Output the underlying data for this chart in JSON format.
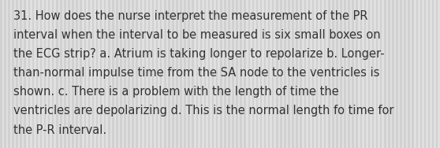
{
  "text_lines": [
    "31. How does the nurse interpret the measurement of the PR",
    "interval when the interval to be measured is six small boxes on",
    "the ECG strip? a. Atrium is taking longer to repolarize b. Longer-",
    "than-normal impulse time from the SA node to the ventricles is",
    "shown. c. There is a problem with the length of time the",
    "ventricles are depolarizing d. This is the normal length fo time for",
    "the P-R interval."
  ],
  "background_color_light": "#e0e0e0",
  "background_color_dark": "#c8c8c8",
  "text_color": "#333333",
  "font_size": 10.5,
  "fig_width": 5.58,
  "fig_height": 1.88,
  "dpi": 100,
  "num_stripes": 110,
  "stripe_ratio": 0.5
}
